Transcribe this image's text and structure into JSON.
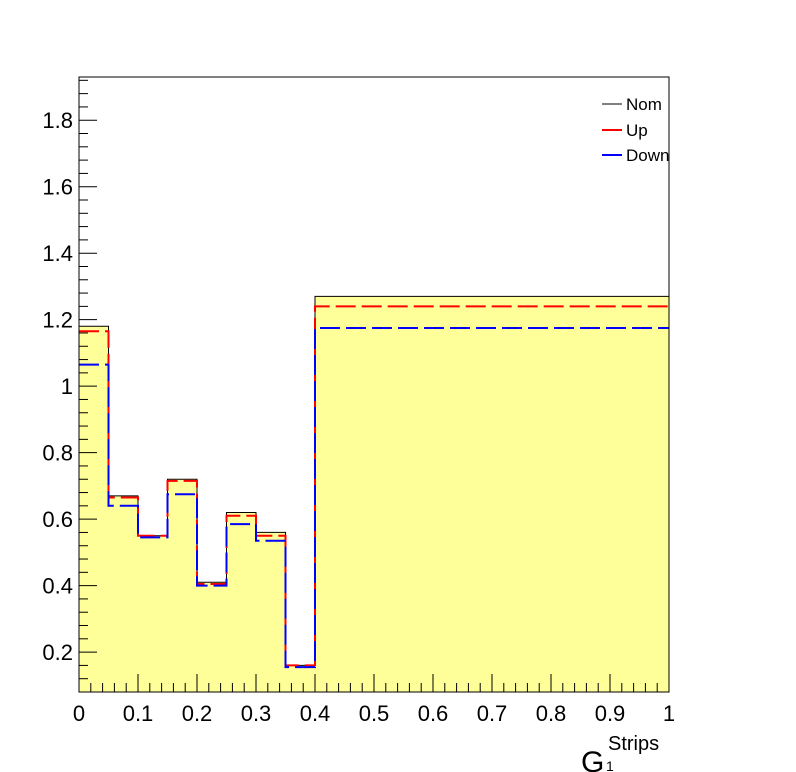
{
  "chart_data": {
    "type": "step-histogram",
    "bin_edges": [
      0,
      0.05,
      0.1,
      0.15,
      0.2,
      0.25,
      0.3,
      0.35,
      0.4,
      1.0
    ],
    "series": [
      {
        "name": "Nom",
        "color": "#000000",
        "style": "solid",
        "fill": "#ffff99",
        "values": [
          1.18,
          0.67,
          0.55,
          0.72,
          0.41,
          0.62,
          0.56,
          0.16,
          1.27
        ]
      },
      {
        "name": "Up",
        "color": "#ff0000",
        "style": "dashed",
        "values": [
          1.165,
          0.665,
          0.55,
          0.715,
          0.405,
          0.61,
          0.55,
          0.16,
          1.24
        ]
      },
      {
        "name": "Down",
        "color": "#0000ff",
        "style": "dashed",
        "values": [
          1.065,
          0.64,
          0.545,
          0.675,
          0.4,
          0.585,
          0.535,
          0.155,
          1.175
        ]
      }
    ],
    "xlim": [
      0,
      1
    ],
    "ylim": [
      0.08,
      1.93
    ],
    "x_ticks": [
      "0",
      "0.1",
      "0.2",
      "0.3",
      "0.4",
      "0.5",
      "0.6",
      "0.7",
      "0.8",
      "0.9",
      "1"
    ],
    "y_ticks": [
      "0.2",
      "0.4",
      "0.6",
      "0.8",
      "1",
      "1.2",
      "1.4",
      "1.6",
      "1.8"
    ],
    "xlabel": {
      "main": "G",
      "sup": "Strips",
      "sub": "1"
    },
    "legend_position": "top-right",
    "grid": false
  }
}
